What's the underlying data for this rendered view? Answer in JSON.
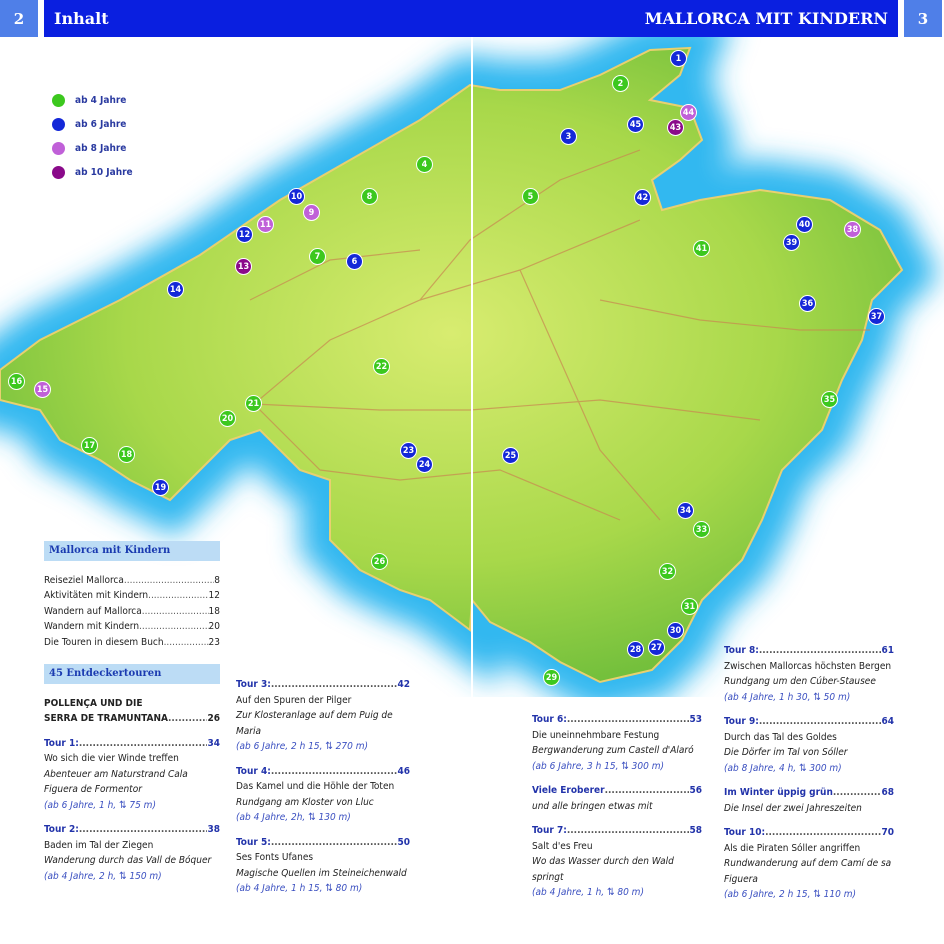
{
  "header": {
    "left_page": "2",
    "left_title": "Inhalt",
    "right_title": "MALLORCA MIT KINDERN",
    "right_page": "3"
  },
  "legend": [
    {
      "label": "ab 4 Jahre",
      "color": "#3cc81e"
    },
    {
      "label": "ab 6 Jahre",
      "color": "#1428d8"
    },
    {
      "label": "ab 8 Jahre",
      "color": "#c060d8"
    },
    {
      "label": "ab 10 Jahre",
      "color": "#8a0a8a"
    }
  ],
  "markers": [
    {
      "n": "1",
      "age": 1
    },
    {
      "n": "2",
      "age": 0
    },
    {
      "n": "3",
      "age": 1
    },
    {
      "n": "4",
      "age": 0
    },
    {
      "n": "5",
      "age": 0
    },
    {
      "n": "6",
      "age": 1
    },
    {
      "n": "7",
      "age": 0
    },
    {
      "n": "8",
      "age": 0
    },
    {
      "n": "9",
      "age": 2
    },
    {
      "n": "10",
      "age": 1
    },
    {
      "n": "11",
      "age": 2
    },
    {
      "n": "12",
      "age": 1
    },
    {
      "n": "13",
      "age": 3
    },
    {
      "n": "14",
      "age": 1
    },
    {
      "n": "15",
      "age": 2
    },
    {
      "n": "16",
      "age": 0
    },
    {
      "n": "17",
      "age": 0
    },
    {
      "n": "18",
      "age": 0
    },
    {
      "n": "19",
      "age": 1
    },
    {
      "n": "20",
      "age": 0
    },
    {
      "n": "21",
      "age": 0
    },
    {
      "n": "22",
      "age": 0
    },
    {
      "n": "23",
      "age": 1
    },
    {
      "n": "24",
      "age": 1
    },
    {
      "n": "25",
      "age": 1
    },
    {
      "n": "26",
      "age": 0
    },
    {
      "n": "27",
      "age": 1
    },
    {
      "n": "28",
      "age": 1
    },
    {
      "n": "29",
      "age": 0
    },
    {
      "n": "30",
      "age": 1
    },
    {
      "n": "31",
      "age": 0
    },
    {
      "n": "32",
      "age": 0
    },
    {
      "n": "33",
      "age": 0
    },
    {
      "n": "34",
      "age": 1
    },
    {
      "n": "35",
      "age": 0
    },
    {
      "n": "36",
      "age": 1
    },
    {
      "n": "37",
      "age": 1
    },
    {
      "n": "38",
      "age": 2
    },
    {
      "n": "39",
      "age": 1
    },
    {
      "n": "40",
      "age": 1
    },
    {
      "n": "41",
      "age": 0
    },
    {
      "n": "42",
      "age": 1
    },
    {
      "n": "43",
      "age": 3
    },
    {
      "n": "44",
      "age": 2
    },
    {
      "n": "45",
      "age": 1
    }
  ],
  "toc": {
    "section1": {
      "title": "Mallorca mit Kindern",
      "items": [
        {
          "label": "Reiseziel Mallorca",
          "page": "8"
        },
        {
          "label": "Aktivitäten mit Kindern",
          "page": "12"
        },
        {
          "label": "Wandern auf Mallorca",
          "page": "18"
        },
        {
          "label": "Wandern mit Kindern",
          "page": "20"
        },
        {
          "label": "Die Touren in diesem Buch",
          "page": "23"
        }
      ]
    },
    "section2": {
      "title": "45 Entdeckertouren",
      "region_line1": "POLLENÇA UND DIE",
      "region_line2": "SERRA DE TRAMUNTANA",
      "region_page": "26"
    },
    "tours": [
      {
        "label": "Tour 1:",
        "page": "34",
        "title": "Wo sich die vier Winde treffen",
        "subtitle": "Abenteuer am Naturstrand Cala Figuera de Formentor",
        "meta": "(ab 6 Jahre, 1 h, ⇅ 75 m)"
      },
      {
        "label": "Tour 2:",
        "page": "38",
        "title": "Baden im Tal der Ziegen",
        "subtitle": "Wanderung durch das Vall de Bóquer",
        "meta": "(ab 4 Jahre, 2 h, ⇅ 150 m)"
      },
      {
        "label": "Tour 3:",
        "page": "42",
        "title": "Auf den Spuren der Pilger",
        "subtitle": "Zur Klosteranlage auf dem Puig de Maria",
        "meta": "(ab 6 Jahre, 2 h 15, ⇅ 270 m)"
      },
      {
        "label": "Tour 4:",
        "page": "46",
        "title": "Das Kamel und die Höhle der Toten",
        "subtitle": "Rundgang am Kloster von Lluc",
        "meta": "(ab 4 Jahre, 2h, ⇅ 130 m)"
      },
      {
        "label": "Tour 5:",
        "page": "50",
        "title": "Ses Fonts Ufanes",
        "subtitle": "Magische Quellen im Steineichenwald",
        "meta": "(ab 4 Jahre, 1 h 15, ⇅ 80 m)"
      },
      {
        "label": "Tour 6:",
        "page": "53",
        "title": "Die uneinnehmbare Festung",
        "subtitle": "Bergwanderung zum Castell d'Alaró",
        "meta": "(ab 6 Jahre, 3 h 15, ⇅ 300 m)"
      },
      {
        "label": "Viele Eroberer",
        "page": "56",
        "title": "",
        "subtitle": "und alle bringen etwas mit",
        "meta": ""
      },
      {
        "label": "Tour 7:",
        "page": "58",
        "title": "Salt d'es Freu",
        "subtitle": "Wo das Wasser durch den Wald springt",
        "meta": "(ab 4 Jahre, 1 h, ⇅ 80 m)"
      },
      {
        "label": "Tour 8:",
        "page": "61",
        "title": "Zwischen Mallorcas höchsten Bergen",
        "subtitle": "Rundgang um den Cúber-Stausee",
        "meta": "(ab 4 Jahre, 1 h 30, ⇅ 50 m)"
      },
      {
        "label": "Tour 9:",
        "page": "64",
        "title": "Durch das Tal des Goldes",
        "subtitle": "Die Dörfer im Tal von Sóller",
        "meta": "(ab 8 Jahre, 4 h, ⇅ 300 m)"
      },
      {
        "label": "Im Winter üppig grün",
        "page": "68",
        "title": "",
        "subtitle": "Die Insel der zwei Jahreszeiten",
        "meta": ""
      },
      {
        "label": "Tour 10:",
        "page": "70",
        "title": "Als die Piraten Sóller angriffen",
        "subtitle": "Rundwanderung auf dem Camí de sa Figuera",
        "meta": "(ab 6 Jahre, 2 h 15, ⇅ 110 m)"
      }
    ]
  }
}
